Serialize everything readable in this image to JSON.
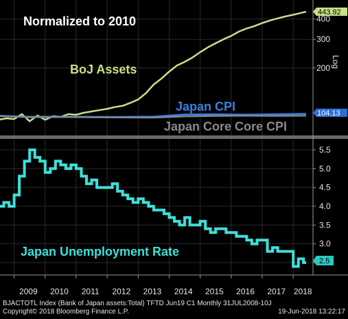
{
  "chart_data": [
    {
      "type": "line",
      "title": "Normalized to 2010",
      "y_scale": "log",
      "y_scale_label": "Log",
      "y_ticks": [
        200,
        300,
        400
      ],
      "x_range": [
        "2008-07",
        "2018-06"
      ],
      "grid": true,
      "series": [
        {
          "name": "BoJ Assets",
          "color": "#c8e08a",
          "last_value": "443.92",
          "x": [
            "2008-07",
            "2008-10",
            "2009-01",
            "2009-04",
            "2009-07",
            "2009-10",
            "2010-01",
            "2010-04",
            "2010-07",
            "2010-10",
            "2011-01",
            "2011-04",
            "2011-07",
            "2011-10",
            "2012-01",
            "2012-04",
            "2012-07",
            "2012-10",
            "2013-01",
            "2013-04",
            "2013-07",
            "2013-10",
            "2014-01",
            "2014-04",
            "2014-07",
            "2014-10",
            "2015-01",
            "2015-04",
            "2015-07",
            "2015-10",
            "2016-01",
            "2016-04",
            "2016-07",
            "2016-10",
            "2017-01",
            "2017-04",
            "2017-07",
            "2017-10",
            "2018-01",
            "2018-04",
            "2018-06"
          ],
          "values": [
            96,
            98,
            97,
            104,
            94,
            102,
            96,
            101,
            100,
            104,
            103,
            106,
            108,
            110,
            112,
            115,
            117,
            122,
            128,
            140,
            158,
            172,
            190,
            207,
            218,
            232,
            250,
            268,
            284,
            300,
            315,
            335,
            350,
            362,
            378,
            392,
            404,
            415,
            425,
            436,
            443.92
          ]
        },
        {
          "name": "Japan CPI",
          "color": "#3a7fe0",
          "last_value": "104.13",
          "x": [
            "2008-07",
            "2009-07",
            "2010-07",
            "2011-07",
            "2012-07",
            "2013-07",
            "2014-07",
            "2015-07",
            "2016-07",
            "2017-07",
            "2018-06"
          ],
          "values": [
            101.5,
            99.8,
            100,
            99.8,
            99.7,
            100.1,
            103.2,
            103.5,
            103.0,
            103.6,
            104.13
          ]
        },
        {
          "name": "Japan Core Core CPI",
          "color": "#8a8a8a",
          "x": [
            "2008-07",
            "2009-07",
            "2010-07",
            "2011-07",
            "2012-07",
            "2013-07",
            "2014-07",
            "2015-07",
            "2016-07",
            "2017-07",
            "2018-06"
          ],
          "values": [
            101.0,
            100.2,
            100,
            99.4,
            99.0,
            98.8,
            100.5,
            101.2,
            101.5,
            101.3,
            101.5
          ]
        }
      ]
    },
    {
      "type": "line",
      "y_ticks": [
        2.5,
        3.0,
        3.5,
        4.0,
        4.5,
        5.0,
        5.5
      ],
      "ylim": [
        2.3,
        5.7
      ],
      "x_ticks": [
        "2009",
        "2010",
        "2011",
        "2012",
        "2013",
        "2014",
        "2015",
        "2016",
        "2017",
        "2018"
      ],
      "grid": true,
      "series": [
        {
          "name": "Japan Unemployment Rate",
          "color": "#3ce0d8",
          "last_value": "2.5",
          "x": [
            "2008-07",
            "2008-09",
            "2008-11",
            "2009-01",
            "2009-03",
            "2009-05",
            "2009-07",
            "2009-09",
            "2009-11",
            "2010-01",
            "2010-03",
            "2010-05",
            "2010-07",
            "2010-09",
            "2010-11",
            "2011-01",
            "2011-03",
            "2011-05",
            "2011-07",
            "2011-09",
            "2011-11",
            "2012-01",
            "2012-03",
            "2012-05",
            "2012-07",
            "2012-09",
            "2012-11",
            "2013-01",
            "2013-03",
            "2013-05",
            "2013-07",
            "2013-09",
            "2013-11",
            "2014-01",
            "2014-03",
            "2014-05",
            "2014-07",
            "2014-09",
            "2014-11",
            "2015-01",
            "2015-03",
            "2015-05",
            "2015-07",
            "2015-09",
            "2015-11",
            "2016-01",
            "2016-03",
            "2016-05",
            "2016-07",
            "2016-09",
            "2016-11",
            "2017-01",
            "2017-03",
            "2017-05",
            "2017-07",
            "2017-09",
            "2017-11",
            "2018-01",
            "2018-03",
            "2018-05",
            "2018-06"
          ],
          "values": [
            4.0,
            4.1,
            4.0,
            4.3,
            4.8,
            5.2,
            5.5,
            5.3,
            5.2,
            4.9,
            5.0,
            5.2,
            5.1,
            5.0,
            5.1,
            5.0,
            4.8,
            4.6,
            4.7,
            4.5,
            4.5,
            4.5,
            4.6,
            4.4,
            4.3,
            4.2,
            4.1,
            4.2,
            4.1,
            4.0,
            3.9,
            3.9,
            3.8,
            3.7,
            3.6,
            3.5,
            3.7,
            3.5,
            3.5,
            3.6,
            3.4,
            3.3,
            3.4,
            3.4,
            3.3,
            3.3,
            3.2,
            3.2,
            3.1,
            3.0,
            3.1,
            3.1,
            2.8,
            2.9,
            2.8,
            2.8,
            2.8,
            2.4,
            2.6,
            2.5,
            2.5
          ]
        }
      ]
    }
  ],
  "footer": {
    "line1": "BJACTOTL Index (Bank of Japan assets:Total) TFTD Jun19 C1  Monthly 31JUL2008-10J",
    "line2_left": "Copyright© 2018 Bloomberg Finance L.P.",
    "line2_right": "19-Jun-2018 13:22:17"
  }
}
